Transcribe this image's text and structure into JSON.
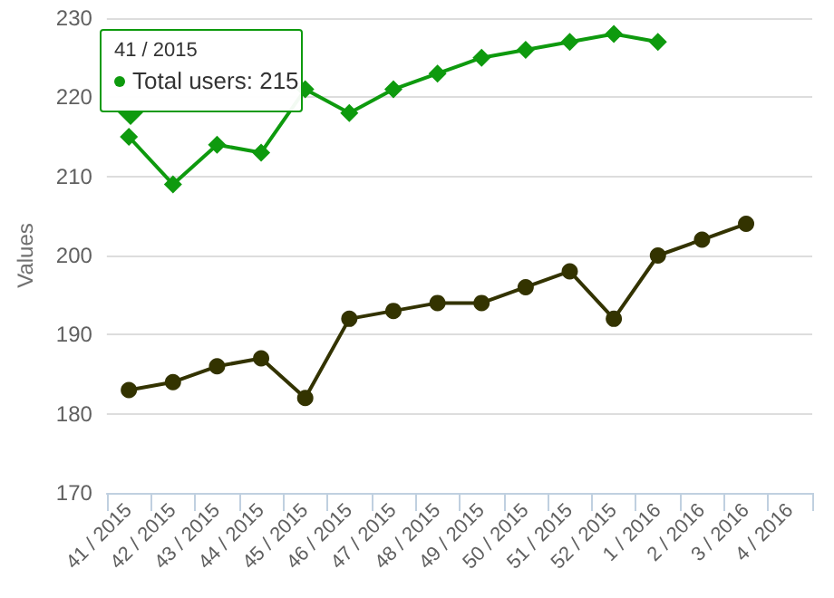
{
  "chart_data": {
    "type": "line",
    "ylabel": "Values",
    "categories": [
      "41 / 2015",
      "42 / 2015",
      "43 / 2015",
      "44 / 2015",
      "45 / 2015",
      "46 / 2015",
      "47 / 2015",
      "48 / 2015",
      "49 / 2015",
      "50 / 2015",
      "51 / 2015",
      "52 / 2015",
      "1 / 2016",
      "2 / 2016",
      "3 / 2016",
      "4 / 2016"
    ],
    "series": [
      {
        "color": "#0e9a0e",
        "marker": "diamond",
        "values": [
          215,
          209,
          214,
          213,
          221,
          218,
          221,
          223,
          225,
          226,
          227,
          228,
          227,
          null,
          null,
          null
        ]
      },
      {
        "color": "#333300",
        "marker": "circle",
        "values": [
          183,
          184,
          186,
          187,
          182,
          192,
          193,
          194,
          194,
          196,
          198,
          192,
          200,
          202,
          204,
          null
        ]
      }
    ],
    "ylim": [
      170,
      230
    ],
    "yticks": [
      170,
      180,
      190,
      200,
      210,
      220,
      230
    ],
    "grid": "y",
    "annotations": [
      "41 / 2015",
      {
        "text": "Total users: 215",
        "x": "41 / 2015",
        "y": 215
      }
    ]
  }
}
